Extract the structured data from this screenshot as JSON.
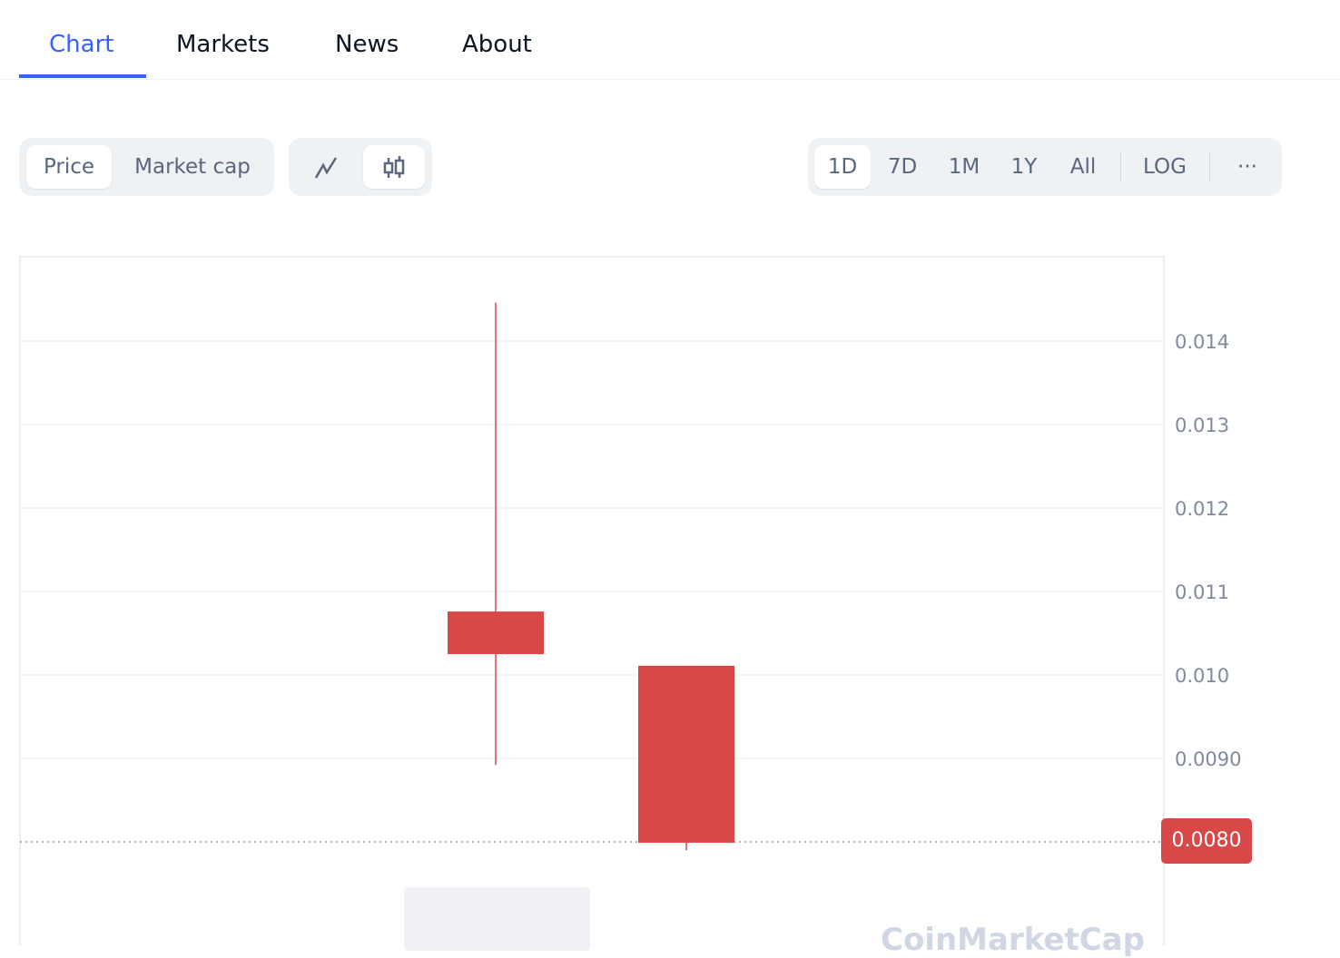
{
  "tabs": [
    "Chart",
    "Markets",
    "News",
    "About"
  ],
  "active_tab": "Chart",
  "toolbar": {
    "metric": [
      "Price",
      "Market cap"
    ],
    "chart_types": [
      "line-chart-icon",
      "candlestick-icon"
    ],
    "ranges": [
      "1D",
      "7D",
      "1M",
      "1Y",
      "All"
    ],
    "log": "LOG",
    "more": "···"
  },
  "watermark": "CoinMarketCap",
  "chart_data": {
    "type": "candlestick",
    "ylim": [
      0.0075,
      0.015
    ],
    "y_ticks": [
      "0.014",
      "0.013",
      "0.012",
      "0.011",
      "0.010",
      "0.0090"
    ],
    "y_tick_values": [
      0.014,
      0.013,
      0.012,
      0.011,
      0.01,
      0.009
    ],
    "grid": true,
    "current_price": "0.0080",
    "current_price_value": 0.008,
    "candles": [
      {
        "open": 0.01076,
        "high": 0.01446,
        "low": 0.00892,
        "close": 0.01025
      },
      {
        "open": 0.01011,
        "high": 0.01011,
        "low": 0.0079,
        "close": 0.00799
      }
    ],
    "colors": {
      "down": "#d94848",
      "grid": "#eff2f5",
      "axis_text": "#808a9d"
    }
  }
}
